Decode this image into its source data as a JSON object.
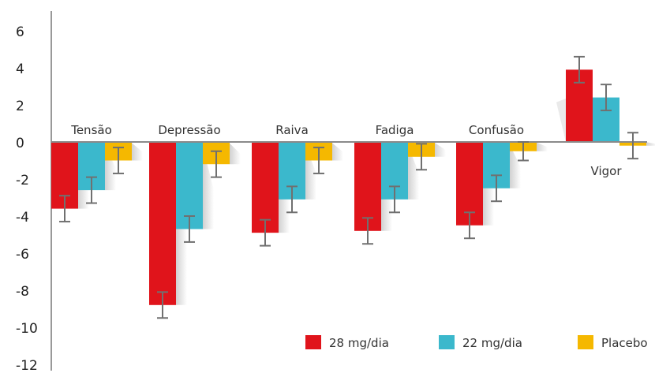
{
  "chart_data": {
    "type": "bar",
    "categories": [
      "Tensão",
      "Depressão",
      "Raiva",
      "Fadiga",
      "Confusão",
      "Vigor"
    ],
    "series": [
      {
        "name": "28 mg/dia",
        "color": "#e0141b",
        "values": [
          -3.6,
          -8.8,
          -4.9,
          -4.8,
          -4.5,
          3.9
        ],
        "errors": [
          0.7,
          0.7,
          0.7,
          0.7,
          0.7,
          0.7
        ]
      },
      {
        "name": "22 mg/dia",
        "color": "#3bb8cc",
        "values": [
          -2.6,
          -4.7,
          -3.1,
          -3.1,
          -2.5,
          2.4
        ],
        "errors": [
          0.7,
          0.7,
          0.7,
          0.7,
          0.7,
          0.7
        ]
      },
      {
        "name": "Placebo",
        "color": "#f5b800",
        "values": [
          -1.0,
          -1.2,
          -1.0,
          -0.8,
          -0.5,
          -0.2
        ],
        "errors": [
          0.7,
          0.7,
          0.7,
          0.7,
          0.5,
          0.7
        ]
      }
    ],
    "yticks": [
      6,
      4,
      2,
      0,
      -2,
      -4,
      -6,
      -8,
      -10,
      -12
    ],
    "ylim": [
      -12,
      6
    ],
    "title": "",
    "xlabel": "",
    "ylabel": "",
    "grid": false,
    "legend_position": "bottom-right",
    "errorbar_color": "#707070",
    "axis_color": "#555555"
  }
}
